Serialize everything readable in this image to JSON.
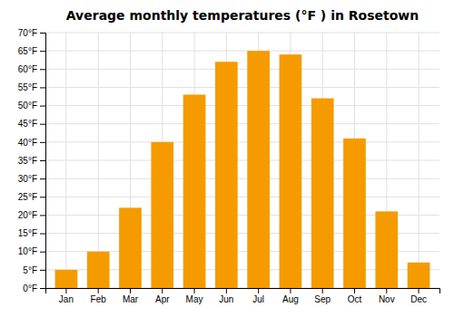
{
  "chart_data": {
    "type": "bar",
    "title": "Average monthly temperatures (°F ) in Rosetown",
    "categories": [
      "Jan",
      "Feb",
      "Mar",
      "Apr",
      "May",
      "Jun",
      "Jul",
      "Aug",
      "Sep",
      "Oct",
      "Nov",
      "Dec"
    ],
    "values": [
      5,
      10,
      22,
      40,
      53,
      62,
      65,
      64,
      52,
      41,
      21,
      7
    ],
    "color": "#F59B00",
    "ylim": [
      0,
      70
    ],
    "yticks": [
      {
        "value": 0,
        "label": "0°F"
      },
      {
        "value": 5,
        "label": "5°F"
      },
      {
        "value": 10,
        "label": "10°F"
      },
      {
        "value": 15,
        "label": "15°F"
      },
      {
        "value": 20,
        "label": "20°F"
      },
      {
        "value": 25,
        "label": "25°F"
      },
      {
        "value": 30,
        "label": "30°F"
      },
      {
        "value": 35,
        "label": "35°F"
      },
      {
        "value": 40,
        "label": "40°F"
      },
      {
        "value": 45,
        "label": "45°F"
      },
      {
        "value": 50,
        "label": "50°F"
      },
      {
        "value": 55,
        "label": "55°F"
      },
      {
        "value": 60,
        "label": "60°F"
      },
      {
        "value": 65,
        "label": "65°F"
      },
      {
        "value": 70,
        "label": "70°F"
      }
    ],
    "grid": true
  }
}
